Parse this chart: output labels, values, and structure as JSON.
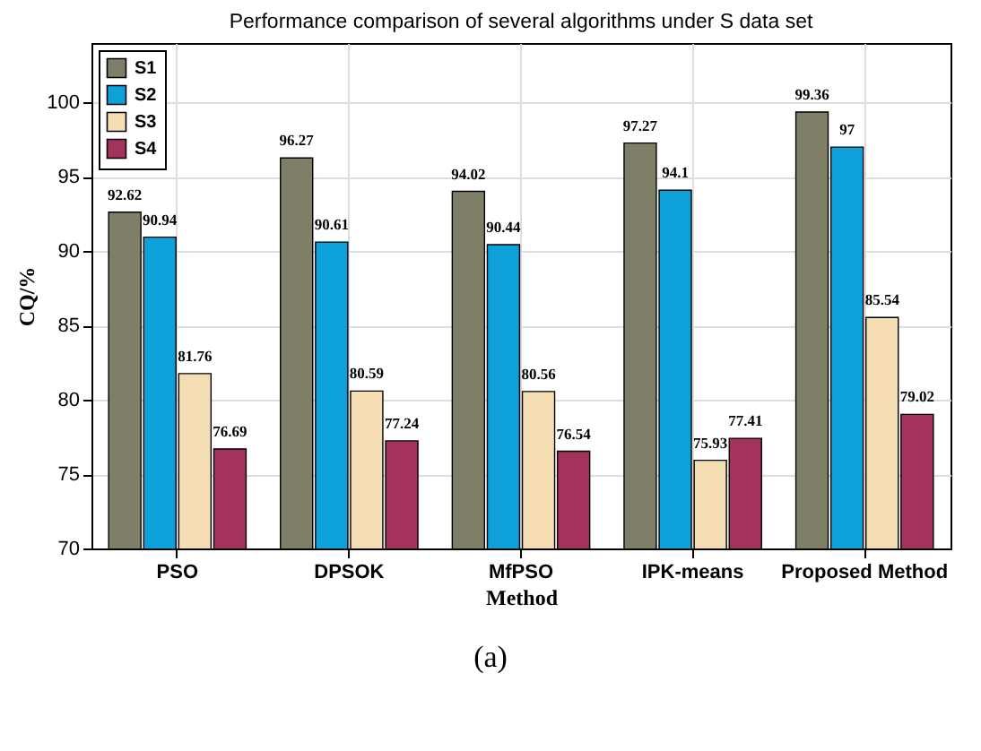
{
  "chart_data": {
    "type": "bar",
    "title": "Performance comparison of several algorithms under S data set",
    "xlabel": "Method",
    "ylabel": "CQ/%",
    "categories": [
      "PSO",
      "DPSOK",
      "MfPSO",
      "IPK-means",
      "Proposed Method"
    ],
    "series": [
      {
        "name": "S1",
        "color": "#7f7f68",
        "values": [
          92.62,
          96.27,
          94.02,
          97.27,
          99.36
        ]
      },
      {
        "name": "S2",
        "color": "#0ea0d8",
        "values": [
          90.94,
          90.61,
          90.44,
          94.1,
          97
        ]
      },
      {
        "name": "S3",
        "color": "#f5deb3",
        "values": [
          81.76,
          80.59,
          80.56,
          75.93,
          85.54
        ]
      },
      {
        "name": "S4",
        "color": "#a3325c",
        "values": [
          76.69,
          77.24,
          76.54,
          77.41,
          79.02
        ]
      }
    ],
    "ylim": [
      70,
      104
    ],
    "yticks": [
      70,
      75,
      80,
      85,
      90,
      95,
      100
    ],
    "grid": true,
    "legend": "top left",
    "data_labels": true,
    "annotations": [
      "(a)"
    ]
  }
}
